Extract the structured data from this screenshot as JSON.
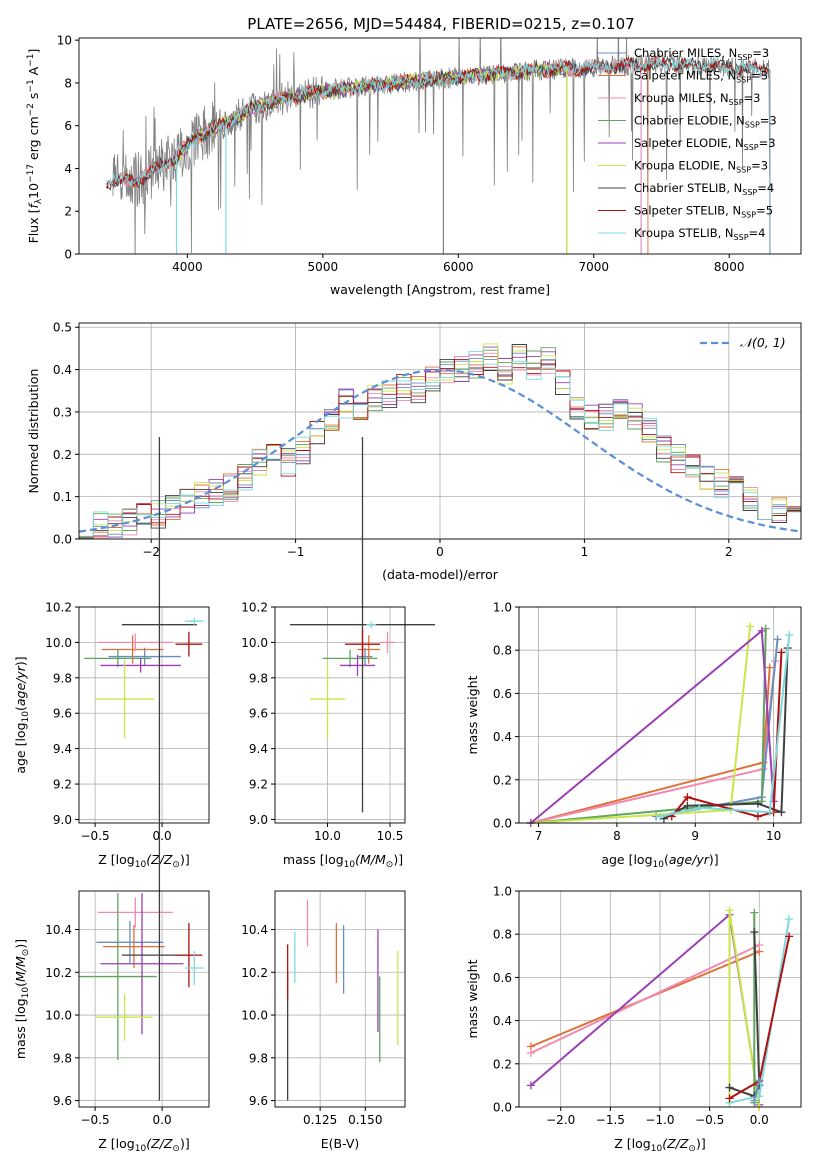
{
  "figure_title": "PLATE=2656, MJD=54484, FIBERID=0215, z=0.107",
  "colors": {
    "Chabrier MILES": "#6c8ebf",
    "Salpeter MILES": "#e0703a",
    "Kroupa MILES": "#f28ab0",
    "Chabrier ELODIE": "#5fa65f",
    "Salpeter ELODIE": "#9b3fb4",
    "Kroupa ELODIE": "#cbe64a",
    "Chabrier STELIB": "#404040",
    "Salpeter STELIB": "#b01010",
    "Kroupa STELIB": "#7fd9dc",
    "data": "#808080",
    "normal": "#5b8fd9"
  },
  "chart_data": [
    {
      "id": "spectrum",
      "type": "line",
      "xlabel": "wavelength [Angstrom, rest frame]",
      "ylabel": "Flux [f_λ 10^-17 erg cm^-2 s^-1 A^-1]",
      "xticks": [
        "4000",
        "5000",
        "6000",
        "7000",
        "8000"
      ],
      "yticks": [
        "0",
        "2",
        "4",
        "6",
        "8",
        "10"
      ],
      "xlim": [
        3200,
        8530
      ],
      "ylim": [
        0,
        10.1
      ],
      "legend_position": "right",
      "legend": [
        {
          "pre": "Chabrier MILES, N",
          "sub": "SSP",
          "post": "=3"
        },
        {
          "pre": "Salpeter MILES, N",
          "sub": "SSP",
          "post": "=3"
        },
        {
          "pre": "Kroupa MILES, N",
          "sub": "SSP",
          "post": "=3"
        },
        {
          "pre": "Chabrier ELODIE, N",
          "sub": "SSP",
          "post": "=3"
        },
        {
          "pre": "Salpeter ELODIE, N",
          "sub": "SSP",
          "post": "=3"
        },
        {
          "pre": "Kroupa ELODIE, N",
          "sub": "SSP",
          "post": "=3"
        },
        {
          "pre": "Chabrier STELIB, N",
          "sub": "SSP",
          "post": "=4"
        },
        {
          "pre": "Salpeter STELIB, N",
          "sub": "SSP",
          "post": "=5"
        },
        {
          "pre": "Kroupa STELIB, N",
          "sub": "SSP",
          "post": "=4"
        }
      ],
      "continuum_points": [
        [
          3450,
          3.4
        ],
        [
          3650,
          3.5
        ],
        [
          3900,
          4.5
        ],
        [
          4100,
          5.6
        ],
        [
          4300,
          6.2
        ],
        [
          4500,
          6.9
        ],
        [
          4800,
          7.4
        ],
        [
          5100,
          7.7
        ],
        [
          5400,
          7.9
        ],
        [
          5700,
          8.1
        ],
        [
          6000,
          8.25
        ],
        [
          6300,
          8.45
        ],
        [
          6600,
          8.6
        ],
        [
          6900,
          8.7
        ],
        [
          7200,
          8.8
        ],
        [
          7500,
          8.9
        ],
        [
          7800,
          8.8
        ],
        [
          8000,
          8.75
        ],
        [
          8300,
          8.6
        ]
      ],
      "series": [
        {
          "name": "Chabrier MILES",
          "x_range": [
            3500,
            7350
          ]
        },
        {
          "name": "Salpeter MILES",
          "x_range": [
            3500,
            7400
          ]
        },
        {
          "name": "Kroupa MILES",
          "x_range": [
            3500,
            7350
          ]
        },
        {
          "name": "Chabrier ELODIE",
          "x_range": [
            3900,
            6800
          ]
        },
        {
          "name": "Salpeter ELODIE",
          "x_range": [
            3900,
            6800
          ]
        },
        {
          "name": "Kroupa ELODIE",
          "x_range": [
            3900,
            6800
          ]
        },
        {
          "name": "Chabrier STELIB",
          "x_range": [
            3400,
            8300
          ]
        },
        {
          "name": "Salpeter STELIB",
          "x_range": [
            3400,
            8300
          ]
        },
        {
          "name": "Kroupa STELIB",
          "x_range": [
            3400,
            8300
          ]
        }
      ]
    },
    {
      "id": "residuals",
      "type": "line",
      "xlabel": "(data-model)/error",
      "ylabel": "Normed distribution",
      "xticks": [
        "−2",
        "−1",
        "0",
        "1",
        "2"
      ],
      "yticks": [
        "0.0",
        "0.1",
        "0.2",
        "0.3",
        "0.4",
        "0.5"
      ],
      "xlim": [
        -2.5,
        2.5
      ],
      "ylim": [
        0,
        0.51
      ],
      "grid": true,
      "legend_position": "top-right",
      "normal_label": "𝒩(0, 1)",
      "bin_edges_start": -2.5,
      "bin_width": 0.1,
      "base_histogram": [
        0.01,
        0.03,
        0.03,
        0.04,
        0.05,
        0.06,
        0.08,
        0.09,
        0.1,
        0.11,
        0.12,
        0.15,
        0.18,
        0.19,
        0.18,
        0.21,
        0.25,
        0.28,
        0.32,
        0.31,
        0.33,
        0.34,
        0.36,
        0.35,
        0.38,
        0.39,
        0.4,
        0.41,
        0.43,
        0.4,
        0.43,
        0.41,
        0.42,
        0.37,
        0.31,
        0.29,
        0.29,
        0.31,
        0.29,
        0.26,
        0.21,
        0.19,
        0.17,
        0.15,
        0.13,
        0.12,
        0.1,
        0.08,
        0.07,
        0.06
      ]
    },
    {
      "id": "age_vs_Z",
      "type": "scatter",
      "xlabel_pre": "Z [log",
      "xlabel_sub": "10",
      "xlabel_post": "(Z/Z",
      "xlabel_tail": ")]",
      "ylabel": "age  [log10(age/yr)]",
      "xticks": [
        "−0.5",
        "0.0"
      ],
      "yticks": [
        "9.0",
        "9.2",
        "9.4",
        "9.6",
        "9.8",
        "10.0",
        "10.2"
      ],
      "xlim": [
        -0.62,
        0.35
      ],
      "ylim": [
        8.98,
        10.2
      ],
      "points": [
        {
          "name": "Chabrier MILES",
          "x": -0.13,
          "y": 9.92,
          "xerr": 0.27,
          "yerr": 0.05
        },
        {
          "name": "Salpeter MILES",
          "x": -0.22,
          "y": 9.96,
          "xerr": 0.23,
          "yerr": 0.08
        },
        {
          "name": "Kroupa MILES",
          "x": -0.2,
          "y": 10.0,
          "xerr": 0.28,
          "yerr": 0.05
        },
        {
          "name": "Chabrier ELODIE",
          "x": -0.33,
          "y": 9.91,
          "xerr": 0.25,
          "yerr": 0.05
        },
        {
          "name": "Salpeter ELODIE",
          "x": -0.16,
          "y": 9.87,
          "xerr": 0.3,
          "yerr": 0.04
        },
        {
          "name": "Kroupa ELODIE",
          "x": -0.28,
          "y": 9.68,
          "xerr": 0.22,
          "yerr": 0.22
        },
        {
          "name": "Chabrier STELIB",
          "x": -0.02,
          "y": 10.1,
          "xerr": 0.28,
          "yerr": 1.06
        },
        {
          "name": "Salpeter STELIB",
          "x": 0.2,
          "y": 9.99,
          "xerr": 0.1,
          "yerr": 0.07
        },
        {
          "name": "Kroupa STELIB",
          "x": 0.24,
          "y": 10.12,
          "xerr": 0.07,
          "yerr": 0.02
        }
      ]
    },
    {
      "id": "age_vs_mass",
      "type": "scatter",
      "xlabel_pre": "mass [log",
      "xlabel_sub": "10",
      "xlabel_post": "(M/M",
      "xlabel_tail": ")]",
      "yticks": [
        "9.0",
        "9.2",
        "9.4",
        "9.6",
        "9.8",
        "10.0",
        "10.2"
      ],
      "xticks": [
        "10.0",
        "10.5"
      ],
      "xlim": [
        9.58,
        10.62
      ],
      "ylim": [
        8.98,
        10.2
      ],
      "points": [
        {
          "name": "Chabrier MILES",
          "x": 10.3,
          "y": 9.92,
          "xerr": 0.06,
          "yerr": 0.05
        },
        {
          "name": "Salpeter MILES",
          "x": 10.33,
          "y": 9.96,
          "xerr": 0.09,
          "yerr": 0.08
        },
        {
          "name": "Kroupa MILES",
          "x": 10.48,
          "y": 10.0,
          "xerr": 0.06,
          "yerr": 0.06
        },
        {
          "name": "Chabrier ELODIE",
          "x": 10.18,
          "y": 9.91,
          "xerr": 0.22,
          "yerr": 0.05
        },
        {
          "name": "Salpeter ELODIE",
          "x": 10.24,
          "y": 9.87,
          "xerr": 0.14,
          "yerr": 0.06
        },
        {
          "name": "Kroupa ELODIE",
          "x": 10.0,
          "y": 9.68,
          "xerr": 0.14,
          "yerr": 0.22
        },
        {
          "name": "Chabrier STELIB",
          "x": 10.28,
          "y": 10.1,
          "xerr": 0.58,
          "yerr": 1.06
        },
        {
          "name": "Salpeter STELIB",
          "x": 10.28,
          "y": 9.99,
          "xerr": 0.14,
          "yerr": 0.08
        },
        {
          "name": "Kroupa STELIB",
          "x": 10.35,
          "y": 10.1,
          "xerr": 0.04,
          "yerr": 0.02
        }
      ]
    },
    {
      "id": "weight_vs_age",
      "type": "line",
      "xlabel": "age  [log10(age/yr)]",
      "ylabel": "mass weight",
      "xticks": [
        "7",
        "8",
        "9",
        "10"
      ],
      "yticks": [
        "0.0",
        "0.2",
        "0.4",
        "0.6",
        "0.8",
        "1.0"
      ],
      "xlim": [
        6.75,
        10.35
      ],
      "ylim": [
        0,
        1
      ],
      "grid": true,
      "series": [
        {
          "name": "Salpeter MILES",
          "x": [
            6.9,
            9.87,
            9.95
          ],
          "y": [
            0.0,
            0.28,
            0.72
          ]
        },
        {
          "name": "Kroupa MILES",
          "x": [
            6.9,
            9.87,
            10.02
          ],
          "y": [
            0.0,
            0.25,
            0.75
          ]
        },
        {
          "name": "Chabrier MILES",
          "x": [
            8.5,
            9.85,
            10.05
          ],
          "y": [
            0.03,
            0.12,
            0.85
          ]
        },
        {
          "name": "Chabrier ELODIE",
          "x": [
            6.9,
            9.85,
            9.9
          ],
          "y": [
            0.0,
            0.1,
            0.9
          ]
        },
        {
          "name": "Kroupa ELODIE",
          "x": [
            6.9,
            9.45,
            9.7
          ],
          "y": [
            0.0,
            0.06,
            0.91
          ]
        },
        {
          "name": "Salpeter ELODIE",
          "x": [
            6.9,
            9.85,
            10.0
          ],
          "y": [
            0.0,
            0.89,
            0.1
          ]
        },
        {
          "name": "Chabrier STELIB",
          "x": [
            8.6,
            8.9,
            9.8,
            10.1,
            10.18
          ],
          "y": [
            0.02,
            0.08,
            0.09,
            0.05,
            0.81
          ]
        },
        {
          "name": "Salpeter STELIB",
          "x": [
            8.7,
            8.9,
            9.8,
            10.0,
            10.1
          ],
          "y": [
            0.03,
            0.12,
            0.03,
            0.05,
            0.79
          ]
        },
        {
          "name": "Kroupa STELIB",
          "x": [
            8.55,
            9.05,
            9.95,
            10.2
          ],
          "y": [
            0.03,
            0.07,
            0.05,
            0.87
          ]
        }
      ]
    },
    {
      "id": "mass_vs_Z",
      "type": "scatter",
      "xlabel_pre": "Z [log",
      "xlabel_sub": "10",
      "xlabel_post": "(Z/Z",
      "xlabel_tail": ")]",
      "ylabel": "mass [log10(M/M⊙)]",
      "xticks": [
        "−0.5",
        "0.0"
      ],
      "yticks": [
        "9.6",
        "9.8",
        "10.0",
        "10.2",
        "10.4"
      ],
      "xlim": [
        -0.62,
        0.35
      ],
      "ylim": [
        9.57,
        10.58
      ],
      "points": [
        {
          "name": "Chabrier MILES",
          "x": -0.24,
          "y": 10.34,
          "xerr": 0.25,
          "yerr": 0.1
        },
        {
          "name": "Salpeter MILES",
          "x": -0.21,
          "y": 10.32,
          "xerr": 0.23,
          "yerr": 0.1
        },
        {
          "name": "Kroupa MILES",
          "x": -0.2,
          "y": 10.48,
          "xerr": 0.28,
          "yerr": 0.07
        },
        {
          "name": "Chabrier ELODIE",
          "x": -0.33,
          "y": 10.18,
          "xerr": 0.29,
          "yerr": 0.39
        },
        {
          "name": "Salpeter ELODIE",
          "x": -0.15,
          "y": 10.24,
          "xerr": 0.31,
          "yerr": 0.33
        },
        {
          "name": "Kroupa ELODIE",
          "x": -0.28,
          "y": 9.99,
          "xerr": 0.21,
          "yerr": 0.11
        },
        {
          "name": "Chabrier STELIB",
          "x": -0.02,
          "y": 10.28,
          "xerr": 0.28,
          "yerr": 0.68
        },
        {
          "name": "Salpeter STELIB",
          "x": 0.2,
          "y": 10.28,
          "xerr": 0.1,
          "yerr": 0.15
        },
        {
          "name": "Kroupa STELIB",
          "x": 0.24,
          "y": 10.22,
          "xerr": 0.07,
          "yerr": 0.08
        }
      ]
    },
    {
      "id": "mass_vs_ebv",
      "type": "scatter",
      "xlabel": "E(B-V)",
      "yticks": [
        "9.6",
        "9.8",
        "10.0",
        "10.2",
        "10.4"
      ],
      "xticks": [
        "0.125",
        "0.150"
      ],
      "xlim": [
        0.1,
        0.172
      ],
      "ylim": [
        9.57,
        10.58
      ],
      "points": [
        {
          "name": "Chabrier STELIB",
          "x": 0.107,
          "y": 9.9,
          "yerr": 0.3
        },
        {
          "name": "Salpeter STELIB",
          "x": 0.107,
          "y": 10.2,
          "yerr": 0.13
        },
        {
          "name": "Kroupa STELIB",
          "x": 0.111,
          "y": 10.27,
          "yerr": 0.12
        },
        {
          "name": "Kroupa MILES",
          "x": 0.118,
          "y": 10.43,
          "yerr": 0.11
        },
        {
          "name": "Salpeter MILES",
          "x": 0.134,
          "y": 10.29,
          "yerr": 0.14
        },
        {
          "name": "Chabrier MILES",
          "x": 0.138,
          "y": 10.26,
          "yerr": 0.16
        },
        {
          "name": "Salpeter ELODIE",
          "x": 0.157,
          "y": 10.16,
          "yerr": 0.24
        },
        {
          "name": "Chabrier ELODIE",
          "x": 0.158,
          "y": 9.98,
          "yerr": 0.2
        },
        {
          "name": "Kroupa ELODIE",
          "x": 0.168,
          "y": 10.08,
          "yerr": 0.22
        }
      ]
    },
    {
      "id": "weight_vs_Z",
      "type": "line",
      "xlabel_pre": "Z [log",
      "xlabel_sub": "10",
      "xlabel_post": "(Z/Z",
      "xlabel_tail": ")]",
      "ylabel": "mass weight",
      "xticks": [
        "−2.0",
        "−1.5",
        "−1.0",
        "−0.5",
        "0.0"
      ],
      "yticks": [
        "0.0",
        "0.2",
        "0.4",
        "0.6",
        "0.8",
        "1.0"
      ],
      "xlim": [
        -2.42,
        0.42
      ],
      "ylim": [
        0,
        1
      ],
      "grid": true,
      "series": [
        {
          "name": "Salpeter MILES",
          "x": [
            -2.3,
            0.0
          ],
          "y": [
            0.28,
            0.72
          ]
        },
        {
          "name": "Kroupa MILES",
          "x": [
            -2.3,
            0.0
          ],
          "y": [
            0.25,
            0.75
          ]
        },
        {
          "name": "Salpeter ELODIE",
          "x": [
            -2.3,
            -0.3,
            0.0
          ],
          "y": [
            0.1,
            0.89,
            0.01
          ]
        },
        {
          "name": "Kroupa ELODIE",
          "x": [
            -0.3,
            -0.3,
            0.0
          ],
          "y": [
            0.02,
            0.91,
            0.0
          ]
        },
        {
          "name": "Chabrier ELODIE",
          "x": [
            -0.05,
            -0.05
          ],
          "y": [
            0.02,
            0.9
          ]
        },
        {
          "name": "Chabrier STELIB",
          "x": [
            -0.3,
            -0.05,
            0.0,
            -0.05
          ],
          "y": [
            0.09,
            0.05,
            0.1,
            0.81
          ]
        },
        {
          "name": "Kroupa STELIB",
          "x": [
            -0.3,
            0.0,
            0.3
          ],
          "y": [
            0.02,
            0.05,
            0.87
          ]
        },
        {
          "name": "Salpeter STELIB",
          "x": [
            -0.3,
            0.0,
            0.3
          ],
          "y": [
            0.04,
            0.12,
            0.79
          ]
        },
        {
          "name": "Chabrier MILES",
          "x": [
            -0.05,
            0.0
          ],
          "y": [
            0.03,
            0.12
          ]
        }
      ]
    }
  ]
}
